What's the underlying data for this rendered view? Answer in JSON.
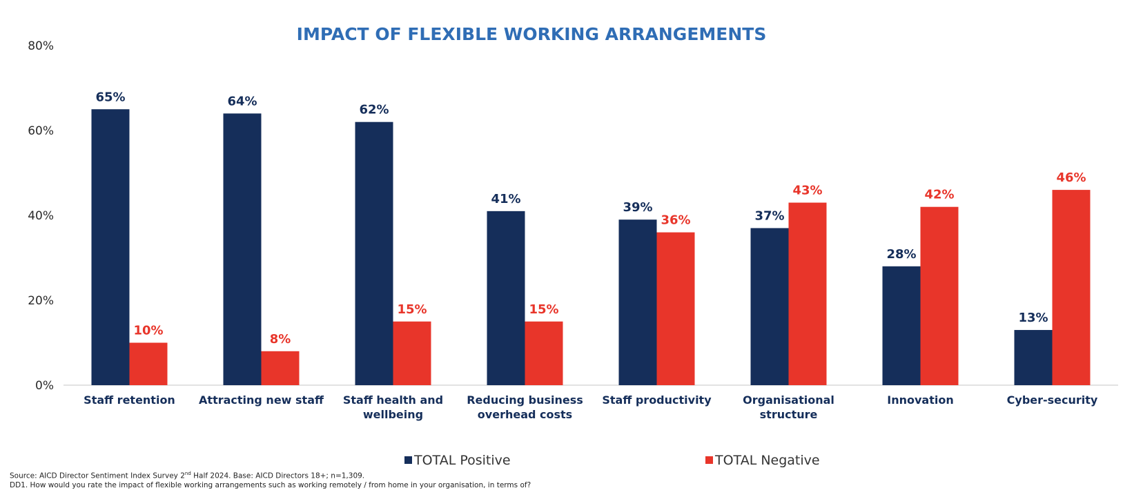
{
  "chart_data": {
    "type": "bar",
    "title": "IMPACT OF FLEXIBLE WORKING ARRANGEMENTS",
    "categories": [
      [
        "Staff retention"
      ],
      [
        "Attracting new staff"
      ],
      [
        "Staff health and",
        "wellbeing"
      ],
      [
        "Reducing business",
        "overhead costs"
      ],
      [
        "Staff productivity"
      ],
      [
        "Organisational",
        "structure"
      ],
      [
        "Innovation"
      ],
      [
        "Cyber-security"
      ]
    ],
    "series": [
      {
        "name": "TOTAL Positive",
        "color": "#152e5a",
        "values": [
          65,
          64,
          62,
          41,
          39,
          37,
          28,
          13
        ],
        "labels": [
          "65%",
          "64%",
          "62%",
          "41%",
          "39%",
          "37%",
          "28%",
          "13%"
        ]
      },
      {
        "name": "TOTAL Negative",
        "color": "#e8352a",
        "values": [
          10,
          8,
          15,
          15,
          36,
          43,
          42,
          46
        ],
        "labels": [
          "10%",
          "8%",
          "15%",
          "15%",
          "36%",
          "43%",
          "42%",
          "46%"
        ]
      }
    ],
    "ylim": [
      0,
      80
    ],
    "yticks": [
      0,
      20,
      40,
      60,
      80
    ],
    "ytick_labels": [
      "0%",
      "20%",
      "40%",
      "60%",
      "80%"
    ],
    "grid": false,
    "legend_position": "bottom"
  },
  "footer": {
    "source_prefix": "Source: AICD Director Sentiment Index Survey  2",
    "source_sup": "nd",
    "source_suffix": " Half 2024. Base: AICD Directors 18+; n=1,309.",
    "question": "DD1. How would you rate the impact of flexible working arrangements such as working remotely / from home in your organisation, in terms of?"
  }
}
